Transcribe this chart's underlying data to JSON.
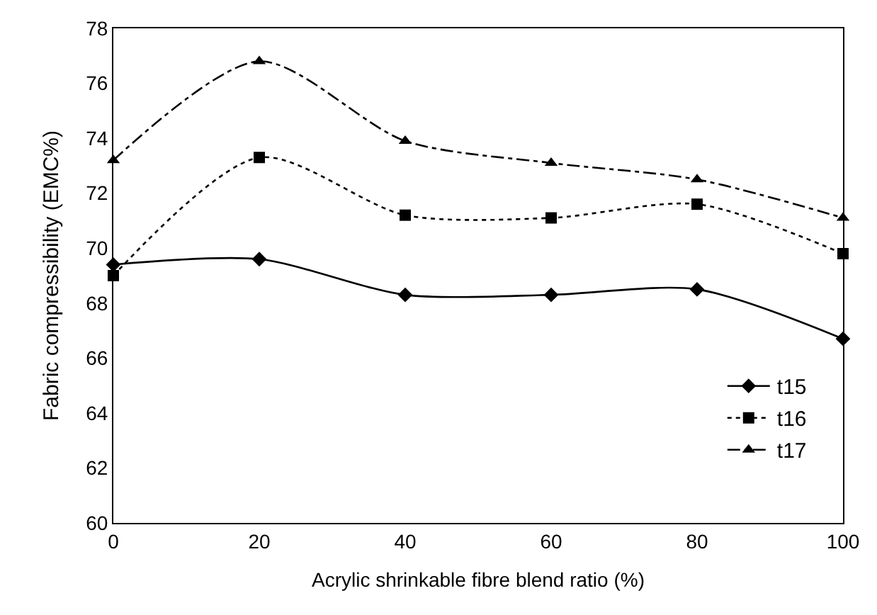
{
  "chart_data": {
    "type": "line",
    "xlabel": "Acrylic shrinkable fibre blend ratio (%)",
    "ylabel": "Fabric compressibility (EMC%)",
    "x": [
      0,
      20,
      40,
      60,
      80,
      100
    ],
    "series": [
      {
        "name": "t15",
        "color": "#000000",
        "values": [
          69.4,
          69.6,
          68.3,
          68.3,
          68.5,
          66.7
        ],
        "marker": "diamond",
        "line_style": "solid"
      },
      {
        "name": "t16",
        "color": "#000000",
        "values": [
          69.0,
          73.3,
          71.2,
          71.1,
          71.6,
          69.8
        ],
        "marker": "square",
        "line_style": "dotted"
      },
      {
        "name": "t17",
        "color": "#000000",
        "values": [
          73.2,
          76.8,
          73.9,
          73.1,
          72.5,
          71.1
        ],
        "marker": "triangle",
        "line_style": "dashdot"
      }
    ],
    "xlim": [
      0,
      100
    ],
    "xticks": [
      0,
      20,
      40,
      60,
      80,
      100
    ],
    "ylim": [
      60,
      78
    ],
    "yticks": [
      60,
      62,
      64,
      66,
      68,
      70,
      72,
      74,
      76,
      78
    ],
    "legend": "bottom right"
  }
}
